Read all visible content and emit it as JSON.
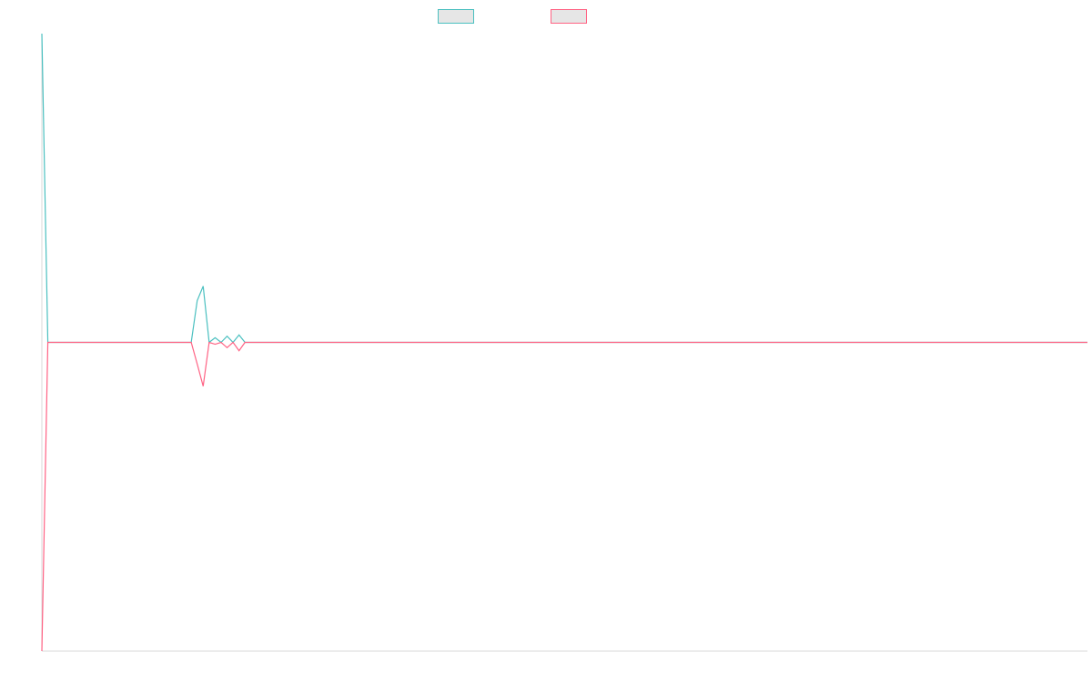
{
  "chart_data": {
    "type": "line",
    "title": "",
    "xlabel": "",
    "ylabel": "",
    "x": [
      0,
      1,
      2,
      3,
      4,
      5,
      6,
      7,
      8,
      9,
      10,
      11,
      12,
      13,
      14,
      15,
      16,
      17,
      18,
      19,
      20,
      21,
      22,
      23,
      24,
      25,
      26,
      27,
      28,
      29,
      30,
      31,
      32,
      33,
      34,
      35,
      36,
      37,
      38,
      39,
      40,
      41,
      42,
      43,
      44,
      45,
      46,
      47,
      48,
      49,
      50,
      51,
      52,
      53,
      54,
      55,
      56,
      57,
      58,
      59,
      60,
      61,
      62,
      63,
      64,
      65,
      66,
      67,
      68,
      69,
      70,
      71,
      72,
      73,
      74,
      75,
      76,
      77,
      78,
      79,
      80,
      81,
      82,
      83,
      84,
      85,
      86,
      87,
      88,
      89,
      90,
      91,
      92,
      93,
      94,
      95,
      96,
      97,
      98,
      99,
      100,
      101,
      102,
      103,
      104,
      105,
      106,
      107,
      108,
      109,
      110,
      111,
      112,
      113,
      114,
      115,
      116,
      117,
      118,
      119,
      120,
      121,
      122,
      123,
      124,
      125,
      126,
      127,
      128,
      129,
      130,
      131,
      132,
      133,
      134,
      135,
      136,
      137,
      138,
      139,
      140,
      141,
      142,
      143,
      144,
      145,
      146,
      147,
      148,
      149,
      150,
      151,
      152,
      153,
      154,
      155,
      156,
      157,
      158,
      159,
      160,
      161,
      162,
      163,
      164,
      165,
      166,
      167,
      168,
      169,
      170,
      171,
      172,
      173,
      174,
      175
    ],
    "series": [
      {
        "color": "#4bc0c0",
        "fill": "#e6e6e6",
        "values": [
          100,
          0,
          0,
          0,
          0,
          0,
          0,
          0,
          0,
          0,
          0,
          0,
          0,
          0,
          0,
          0,
          0,
          0,
          0,
          0,
          0,
          0,
          0,
          0,
          0,
          0,
          13.5,
          18.2,
          0,
          1.5,
          0,
          2.0,
          0,
          2.4,
          0,
          0,
          0,
          0,
          0,
          0,
          0,
          0,
          0,
          0,
          0,
          0,
          0,
          0,
          0,
          0,
          0,
          0,
          0,
          0,
          0,
          0,
          0,
          0,
          0,
          0,
          0,
          0,
          0,
          0,
          0,
          0,
          0,
          0,
          0,
          0,
          0,
          0,
          0,
          0,
          0,
          0,
          0,
          0,
          0,
          0,
          0,
          0,
          0,
          0,
          0,
          0,
          0,
          0,
          0,
          0,
          0,
          0,
          0,
          0,
          0,
          0,
          0,
          0,
          0,
          0,
          0,
          0,
          0,
          0,
          0,
          0,
          0,
          0,
          0,
          0,
          0,
          0,
          0,
          0,
          0,
          0,
          0,
          0,
          0,
          0,
          0,
          0,
          0,
          0,
          0,
          0,
          0,
          0,
          0,
          0,
          0,
          0,
          0,
          0,
          0,
          0,
          0,
          0,
          0,
          0,
          0,
          0,
          0,
          0,
          0,
          0,
          0,
          0,
          0,
          0,
          0,
          0,
          0,
          0,
          0,
          0,
          0,
          0,
          0,
          0,
          0,
          0,
          0,
          0,
          0,
          0,
          0,
          0,
          0,
          0,
          0,
          0,
          0,
          0,
          0,
          0
        ]
      },
      {
        "color": "#ff6384",
        "fill": "#e6e6e6",
        "values": [
          -100,
          0,
          0,
          0,
          0,
          0,
          0,
          0,
          0,
          0,
          0,
          0,
          0,
          0,
          0,
          0,
          0,
          0,
          0,
          0,
          0,
          0,
          0,
          0,
          0,
          0,
          -7.0,
          -14.2,
          0,
          -0.6,
          0,
          -1.7,
          0,
          -2.7,
          0,
          0,
          0,
          0,
          0,
          0,
          0,
          0,
          0,
          0,
          0,
          0,
          0,
          0,
          0,
          0,
          0,
          0,
          0,
          0,
          0,
          0,
          0,
          0,
          0,
          0,
          0,
          0,
          0,
          0,
          0,
          0,
          0,
          0,
          0,
          0,
          0,
          0,
          0,
          0,
          0,
          0,
          0,
          0,
          0,
          0,
          0,
          0,
          0,
          0,
          0,
          0,
          0,
          0,
          0,
          0,
          0,
          0,
          0,
          0,
          0,
          0,
          0,
          0,
          0,
          0,
          0,
          0,
          0,
          0,
          0,
          0,
          0,
          0,
          0,
          0,
          0,
          0,
          0,
          0,
          0,
          0,
          0,
          0,
          0,
          0,
          0,
          0,
          0,
          0,
          0,
          0,
          0,
          0,
          0,
          0,
          0,
          0,
          0,
          0,
          0,
          0,
          0,
          0,
          0,
          0,
          0,
          0,
          0,
          0,
          0,
          0,
          0,
          0,
          0,
          0,
          0,
          0,
          0,
          0,
          0,
          0,
          0,
          0,
          0,
          0,
          0,
          0,
          0,
          0,
          0,
          0,
          0,
          0,
          0,
          0,
          0,
          0,
          0,
          0,
          0,
          0
        ]
      }
    ],
    "ylim": [
      -100,
      100
    ],
    "xlim": [
      0,
      175
    ],
    "grid": false,
    "legend": "top-center",
    "axis_color": "#d9d9d9"
  }
}
